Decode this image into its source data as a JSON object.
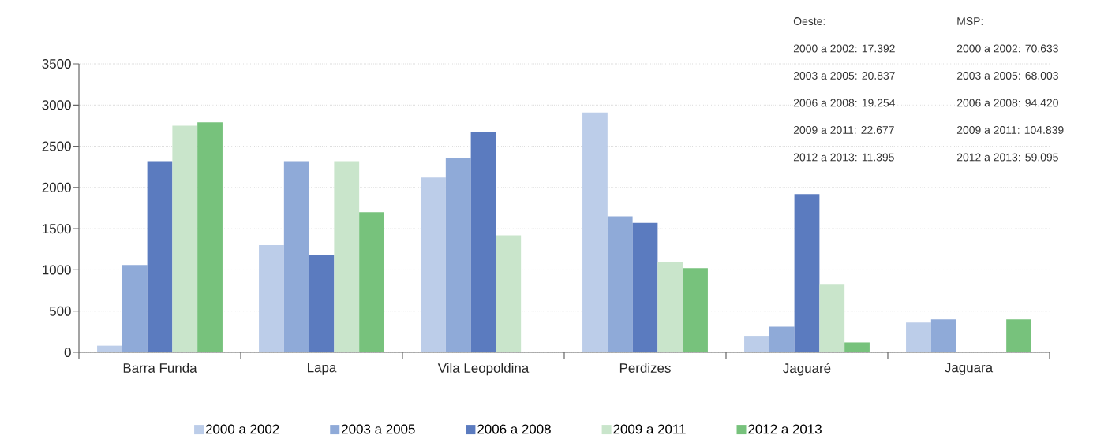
{
  "chart_data": {
    "type": "bar",
    "categories": [
      "Barra Funda",
      "Lapa",
      "Vila Leopoldina",
      "Perdizes",
      "Jaguaré",
      "Jaguara"
    ],
    "series": [
      {
        "name": "2000 a 2002",
        "color": "#bccde9",
        "values": [
          80,
          1300,
          2120,
          2910,
          200,
          360
        ]
      },
      {
        "name": "2003 a 2005",
        "color": "#8faad8",
        "values": [
          1060,
          2320,
          2360,
          1650,
          310,
          400
        ]
      },
      {
        "name": "2006 a 2008",
        "color": "#5b7bbf",
        "values": [
          2320,
          1180,
          2670,
          1570,
          1920,
          null
        ]
      },
      {
        "name": "2009 a 2011",
        "color": "#c9e5cb",
        "values": [
          2750,
          2320,
          1420,
          1100,
          830,
          null
        ]
      },
      {
        "name": "2012 a 2013",
        "color": "#77c27c",
        "values": [
          2790,
          1700,
          null,
          1020,
          120,
          400
        ]
      }
    ],
    "ylim": [
      0,
      3500
    ],
    "yticks": [
      0,
      500,
      1000,
      1500,
      2000,
      2500,
      3000,
      3500
    ],
    "grid": "y",
    "legend": "bottom",
    "annotations": [
      "Oeste:",
      "2000 a 2002: 17.392",
      "2003 a 2005: 20.837",
      "2006 a 2008: 19.254",
      "2009 a 2011: 22.677",
      "2012 a 2013: 11.395",
      "MSP:",
      "2000 a 2002: 70.633",
      "2003 a 2005: 68.003",
      "2006 a 2008: 94.420",
      "2009 a 2011: 104.839",
      "2012 a 2013: 59.095"
    ]
  }
}
